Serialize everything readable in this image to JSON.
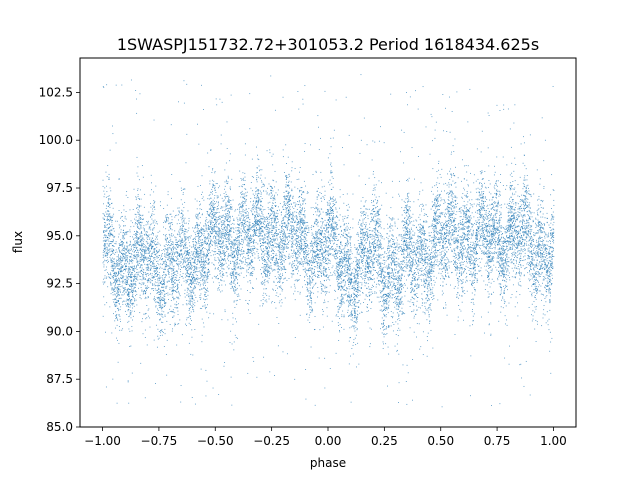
{
  "chart_data": {
    "type": "scatter",
    "title": "1SWASPJ151732.72+301053.2 Period 1618434.625s",
    "xlabel": "phase",
    "ylabel": "flux",
    "xlim": [
      -1.1,
      1.1
    ],
    "ylim": [
      85.0,
      104.3
    ],
    "x_ticks": [
      -1.0,
      -0.75,
      -0.5,
      -0.25,
      0.0,
      0.25,
      0.5,
      0.75,
      1.0
    ],
    "x_tick_labels": [
      "−1.00",
      "−0.75",
      "−0.50",
      "−0.25",
      "0.00",
      "0.25",
      "0.50",
      "0.75",
      "1.00"
    ],
    "y_ticks": [
      85.0,
      87.5,
      90.0,
      92.5,
      95.0,
      97.5,
      100.0,
      102.5
    ],
    "y_tick_labels": [
      "85.0",
      "87.5",
      "90.0",
      "92.5",
      "95.0",
      "97.5",
      "100.0",
      "102.5"
    ],
    "grid": false,
    "marker_color": "#1f77b4",
    "series": [
      {
        "phase_profile": {
          "x": [
            -1.0,
            -0.95,
            -0.9,
            -0.85,
            -0.8,
            -0.75,
            -0.7,
            -0.65,
            -0.6,
            -0.55,
            -0.5,
            -0.45,
            -0.4,
            -0.35,
            -0.3,
            -0.25,
            -0.2,
            -0.15,
            -0.1,
            -0.05,
            0.0,
            0.05,
            0.1,
            0.15,
            0.2,
            0.25,
            0.3,
            0.35,
            0.4,
            0.45,
            0.5,
            0.55,
            0.6,
            0.65,
            0.7,
            0.75,
            0.8,
            0.85,
            0.9,
            0.95,
            1.0
          ],
          "median_flux": [
            94.5,
            94.0,
            93.2,
            93.3,
            94.2,
            93.5,
            93.0,
            93.6,
            94.0,
            94.4,
            94.8,
            95.0,
            95.0,
            94.8,
            94.9,
            95.2,
            95.0,
            94.8,
            94.6,
            94.2,
            94.5,
            94.0,
            93.2,
            93.3,
            94.2,
            93.5,
            93.0,
            93.6,
            94.0,
            94.4,
            94.8,
            95.0,
            95.0,
            94.8,
            94.9,
            95.2,
            95.0,
            94.8,
            94.6,
            94.2,
            94.5
          ],
          "scatter_sigma": 1.4,
          "outlier_range": [
            86.0,
            103.5
          ],
          "n_points": 14000
        }
      }
    ]
  }
}
